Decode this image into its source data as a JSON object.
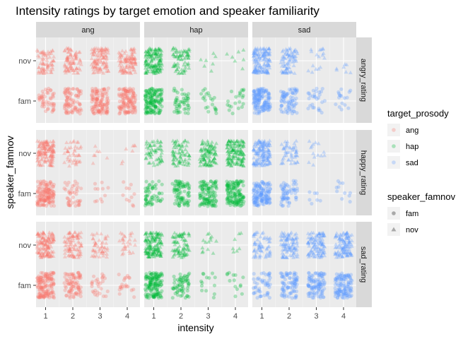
{
  "chart_data": {
    "type": "scatter",
    "subtype": "faceted-jitter",
    "title": "Intensity ratings by target emotion and speaker familiarity",
    "xlabel": "intensity",
    "ylabel": "speaker_famnov",
    "x_ticks": [
      1,
      2,
      3,
      4
    ],
    "y_categories": [
      "fam",
      "nov"
    ],
    "col_facets": [
      "ang",
      "hap",
      "sad"
    ],
    "row_facets": [
      "angry_rating",
      "happy_rating",
      "sad_rating"
    ],
    "legend": {
      "color": {
        "title": "target_prosody",
        "entries": [
          {
            "label": "ang",
            "color": "#F8766D"
          },
          {
            "label": "hap",
            "color": "#00BA38"
          },
          {
            "label": "sad",
            "color": "#619CFF"
          }
        ]
      },
      "shape": {
        "title": "speaker_famnov",
        "entries": [
          {
            "label": "fam",
            "shape": "circle"
          },
          {
            "label": "nov",
            "shape": "triangle"
          }
        ]
      },
      "position": "right"
    },
    "panel_background": "#EBEBEB",
    "strip_background": "#D9D9D9",
    "grid": true,
    "density_scale": "relative point count per (intensity, speaker_famnov) cell, 0-1",
    "panels": [
      {
        "col": "ang",
        "row": "angry_rating",
        "nov": [
          0.5,
          0.6,
          0.75,
          0.75
        ],
        "fam": [
          0.35,
          0.6,
          0.85,
          0.9
        ]
      },
      {
        "col": "hap",
        "row": "angry_rating",
        "nov": [
          1.0,
          0.5,
          0.05,
          0.05
        ],
        "fam": [
          1.0,
          0.35,
          0.15,
          0.15
        ]
      },
      {
        "col": "sad",
        "row": "angry_rating",
        "nov": [
          1.0,
          0.55,
          0.12,
          0.05
        ],
        "fam": [
          1.0,
          0.55,
          0.2,
          0.12
        ]
      },
      {
        "col": "ang",
        "row": "happy_rating",
        "nov": [
          1.0,
          0.3,
          0.05,
          0.05
        ],
        "fam": [
          1.0,
          0.3,
          0.08,
          0.08
        ]
      },
      {
        "col": "hap",
        "row": "happy_rating",
        "nov": [
          0.4,
          0.5,
          0.7,
          0.95
        ],
        "fam": [
          0.4,
          0.6,
          0.8,
          0.95
        ]
      },
      {
        "col": "sad",
        "row": "happy_rating",
        "nov": [
          1.0,
          0.35,
          0.1,
          0.0
        ],
        "fam": [
          1.0,
          0.45,
          0.05,
          0.08
        ]
      },
      {
        "col": "ang",
        "row": "sad_rating",
        "nov": [
          1.0,
          0.65,
          0.35,
          0.2
        ],
        "fam": [
          1.0,
          0.6,
          0.2,
          0.15
        ]
      },
      {
        "col": "hap",
        "row": "sad_rating",
        "nov": [
          1.0,
          0.55,
          0.1,
          0.05
        ],
        "fam": [
          1.0,
          0.45,
          0.1,
          0.1
        ]
      },
      {
        "col": "sad",
        "row": "sad_rating",
        "nov": [
          0.45,
          0.7,
          0.8,
          0.85
        ],
        "fam": [
          0.35,
          0.6,
          0.75,
          0.85
        ]
      }
    ]
  }
}
